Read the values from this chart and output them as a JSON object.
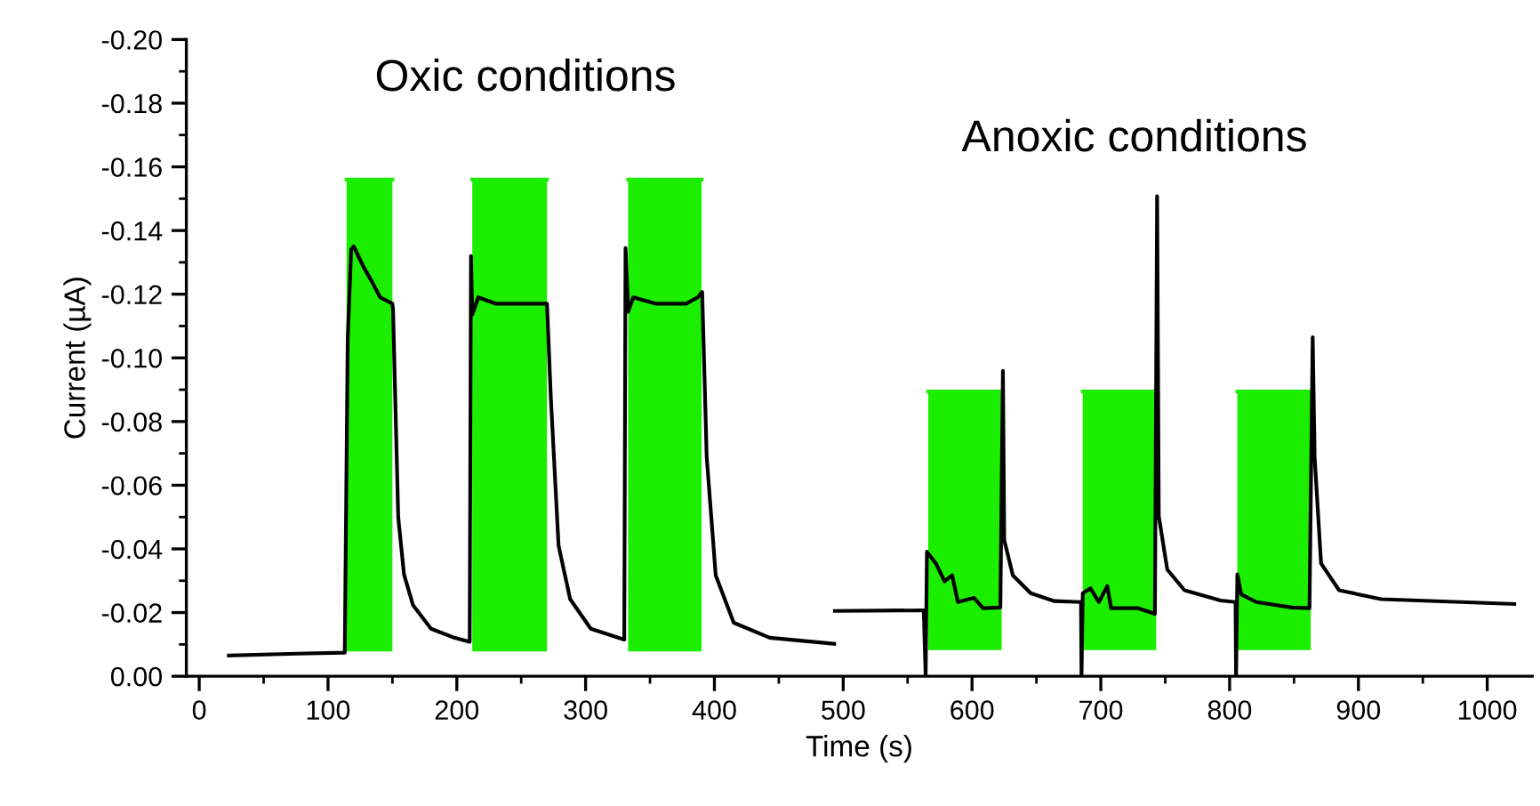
{
  "chart_data": {
    "type": "line",
    "xlabel": "Time (s)",
    "ylabel": "Current (µA)",
    "annotations": [
      "Oxic conditions",
      "Anoxic conditions"
    ],
    "xlim": [
      -10,
      1035
    ],
    "xticks": [
      0,
      {
        "value": 50,
        "label": null
      },
      100,
      {
        "value": 150,
        "label": null
      },
      200,
      {
        "value": 250,
        "label": null
      },
      300,
      {
        "value": 350,
        "label": null
      },
      400,
      {
        "value": 450,
        "label": null
      },
      500,
      {
        "value": 550,
        "label": null
      },
      600,
      {
        "value": 650,
        "label": null
      },
      700,
      {
        "value": 750,
        "label": null
      },
      800,
      {
        "value": 850,
        "label": null
      },
      900,
      {
        "value": 950,
        "label": null
      },
      1000
    ],
    "ylim": [
      0,
      -0.2
    ],
    "yticks": [
      {
        "value": 0,
        "label": "0.00"
      },
      {
        "value": -0.01,
        "label": null
      },
      {
        "value": -0.02,
        "label": "-0.02"
      },
      {
        "value": -0.03,
        "label": null
      },
      {
        "value": -0.04,
        "label": "-0.04"
      },
      {
        "value": -0.05,
        "label": null
      },
      {
        "value": -0.06,
        "label": "-0.06"
      },
      {
        "value": -0.07,
        "label": null
      },
      {
        "value": -0.08,
        "label": "-0.08"
      },
      {
        "value": -0.09,
        "label": null
      },
      {
        "value": -0.1,
        "label": "-0.10"
      },
      {
        "value": -0.11,
        "label": null
      },
      {
        "value": -0.12,
        "label": "-0.12"
      },
      {
        "value": -0.13,
        "label": null
      },
      {
        "value": -0.14,
        "label": "-0.14"
      },
      {
        "value": -0.15,
        "label": null
      },
      {
        "value": -0.16,
        "label": "-0.16"
      },
      {
        "value": -0.17,
        "label": null
      },
      {
        "value": -0.18,
        "label": "-0.18"
      },
      {
        "value": -0.19,
        "label": null
      },
      {
        "value": -0.2,
        "label": "-0.20"
      }
    ],
    "grid": false,
    "marker": "none",
    "line_style": "solid",
    "series": [
      {
        "color": "#1cee00",
        "upper": [
          -0.156,
          -0.156,
          null,
          -0.156,
          -0.156,
          null,
          -0.156,
          -0.156,
          null,
          -0.0894,
          -0.0894,
          null,
          -0.0894,
          -0.0894,
          null,
          -0.0894,
          -0.0894
        ],
        "x": [
          114.4,
          150,
          181,
          212,
          270,
          300,
          333,
          390,
          480,
          566,
          623,
          655,
          686,
          743,
          775,
          806,
          863
        ],
        "values": [
          -0.156,
          -0.156,
          null,
          -0.156,
          -0.156,
          null,
          -0.156,
          -0.156,
          null,
          -0.0894,
          -0.0894,
          null,
          -0.0894,
          -0.0894,
          null,
          -0.0894,
          -0.0894
        ],
        "lower": [
          -0.0078,
          -0.0078,
          null,
          -0.0078,
          -0.0078,
          null,
          -0.0078,
          -0.0078,
          null,
          -0.0082,
          -0.0082,
          null,
          -0.0082,
          -0.0082,
          null,
          -0.0082,
          -0.0082
        ]
      },
      {
        "type": "line",
        "color": "#000000",
        "x": [
          23,
          76,
          113,
          115.3,
          118,
          120,
          127,
          134,
          140.5,
          150,
          150.5,
          154.5,
          159,
          166,
          180,
          198,
          210,
          211,
          212,
          216.7,
          230.5,
          270,
          273,
          279,
          288,
          304,
          330,
          331,
          333,
          337,
          355,
          378,
          387,
          390.5,
          394,
          401,
          415,
          443,
          493
        ],
        "values": [
          -0.0065,
          -0.0071,
          -0.0074,
          -0.106,
          -0.134,
          -0.135,
          -0.129,
          -0.124,
          -0.119,
          -0.117,
          -0.115,
          -0.05,
          -0.032,
          -0.0223,
          -0.0149,
          -0.0121,
          -0.0108,
          -0.132,
          -0.1136,
          -0.119,
          -0.117,
          -0.117,
          -0.0875,
          -0.041,
          -0.0242,
          -0.0149,
          -0.0115,
          -0.1345,
          -0.1145,
          -0.119,
          -0.117,
          -0.117,
          -0.119,
          -0.1207,
          -0.0689,
          -0.0317,
          -0.0168,
          -0.0121,
          -0.0102
        ]
      },
      {
        "type": "line",
        "color": "#000000",
        "x": [
          493.6,
          562.5,
          564,
          565,
          572,
          578.7,
          584.6,
          589,
          601.6,
          608.6,
          622,
          624,
          625,
          631.7,
          645.5,
          664,
          684.6,
          685,
          686,
          692,
          698.5,
          705,
          708,
          728.5,
          742,
          743.7,
          745,
          751.6,
          765,
          793,
          804.6,
          805,
          806,
          809,
          820.7,
          848.4,
          862,
          864.5,
          866,
          871,
          885,
          917.6,
          1021
        ],
        "values": [
          -0.0205,
          -0.0207,
          0,
          -0.0391,
          -0.0354,
          -0.0298,
          -0.0317,
          -0.0233,
          -0.0246,
          -0.0214,
          -0.0216,
          -0.0959,
          -0.0428,
          -0.0317,
          -0.0261,
          -0.0236,
          -0.0233,
          0,
          -0.0261,
          -0.0276,
          -0.0233,
          -0.0283,
          -0.0214,
          -0.0214,
          -0.0196,
          -0.1508,
          -0.0503,
          -0.0335,
          -0.027,
          -0.0238,
          -0.0233,
          0,
          -0.032,
          -0.0257,
          -0.0233,
          -0.0216,
          -0.0214,
          -0.1065,
          -0.0689,
          -0.0354,
          -0.027,
          -0.0242,
          -0.0227
        ]
      }
    ]
  }
}
